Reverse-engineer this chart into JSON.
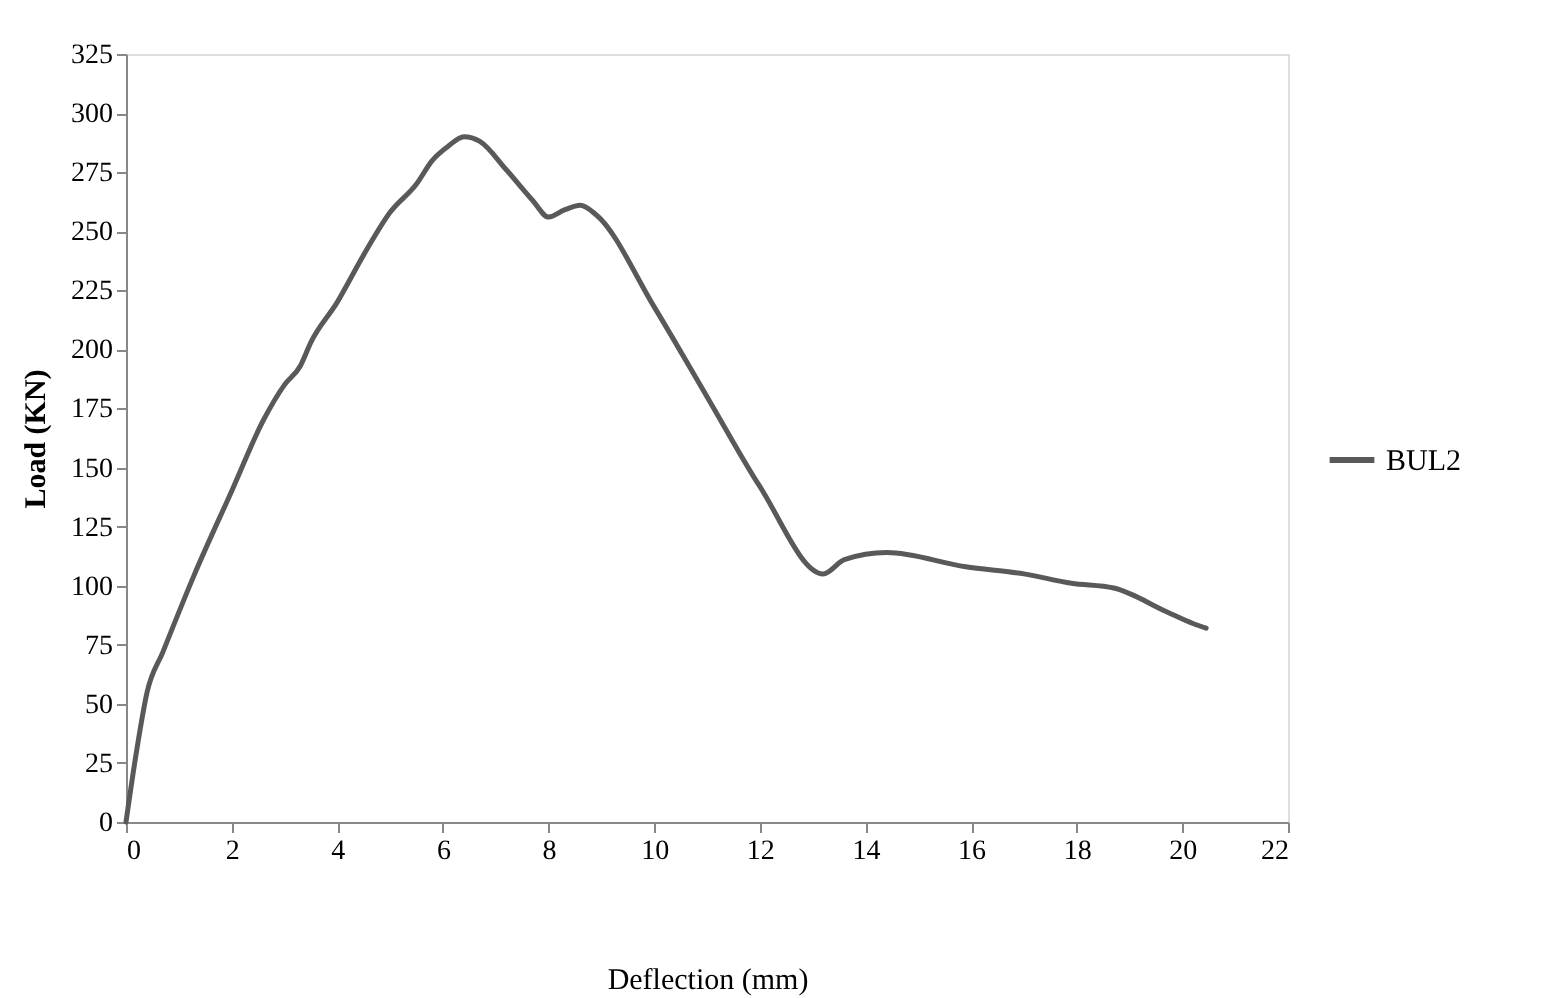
{
  "chart_data": {
    "type": "line",
    "xlabel": "Deflection (mm)",
    "ylabel": "Load (KN)",
    "xlim": [
      0,
      22
    ],
    "xticks": [
      0,
      2,
      4,
      6,
      8,
      10,
      12,
      14,
      16,
      18,
      20,
      22
    ],
    "ylim": [
      0,
      325
    ],
    "yticks": [
      0,
      25,
      50,
      75,
      100,
      125,
      150,
      175,
      200,
      225,
      250,
      275,
      300,
      325
    ],
    "grid": false,
    "legend": "right",
    "marker": "none",
    "line_style": "solid",
    "series": [
      {
        "name": "BUL2",
        "color": "#595959",
        "x": [
          0,
          0.2,
          0.4,
          0.7,
          1.3,
          2,
          2.6,
          3,
          3.3,
          3.5,
          4,
          4.5,
          5,
          5.5,
          5.8,
          6.1,
          6.4,
          6.7,
          7.2,
          7.7,
          8,
          8.3,
          8.6,
          8.9,
          10,
          11,
          12,
          13.2,
          13.6,
          14.4,
          15.9,
          17,
          17.9,
          18.7,
          19.7,
          20.2,
          20.45
        ],
        "values": [
          0,
          30,
          55,
          72,
          105,
          140,
          170,
          185,
          193,
          203,
          220,
          240,
          258,
          270,
          280,
          286,
          290,
          288,
          276,
          263,
          256,
          259,
          261,
          257,
          218,
          180,
          142,
          105,
          111,
          114,
          108,
          105,
          101,
          99,
          89,
          84,
          82
        ]
      }
    ]
  }
}
